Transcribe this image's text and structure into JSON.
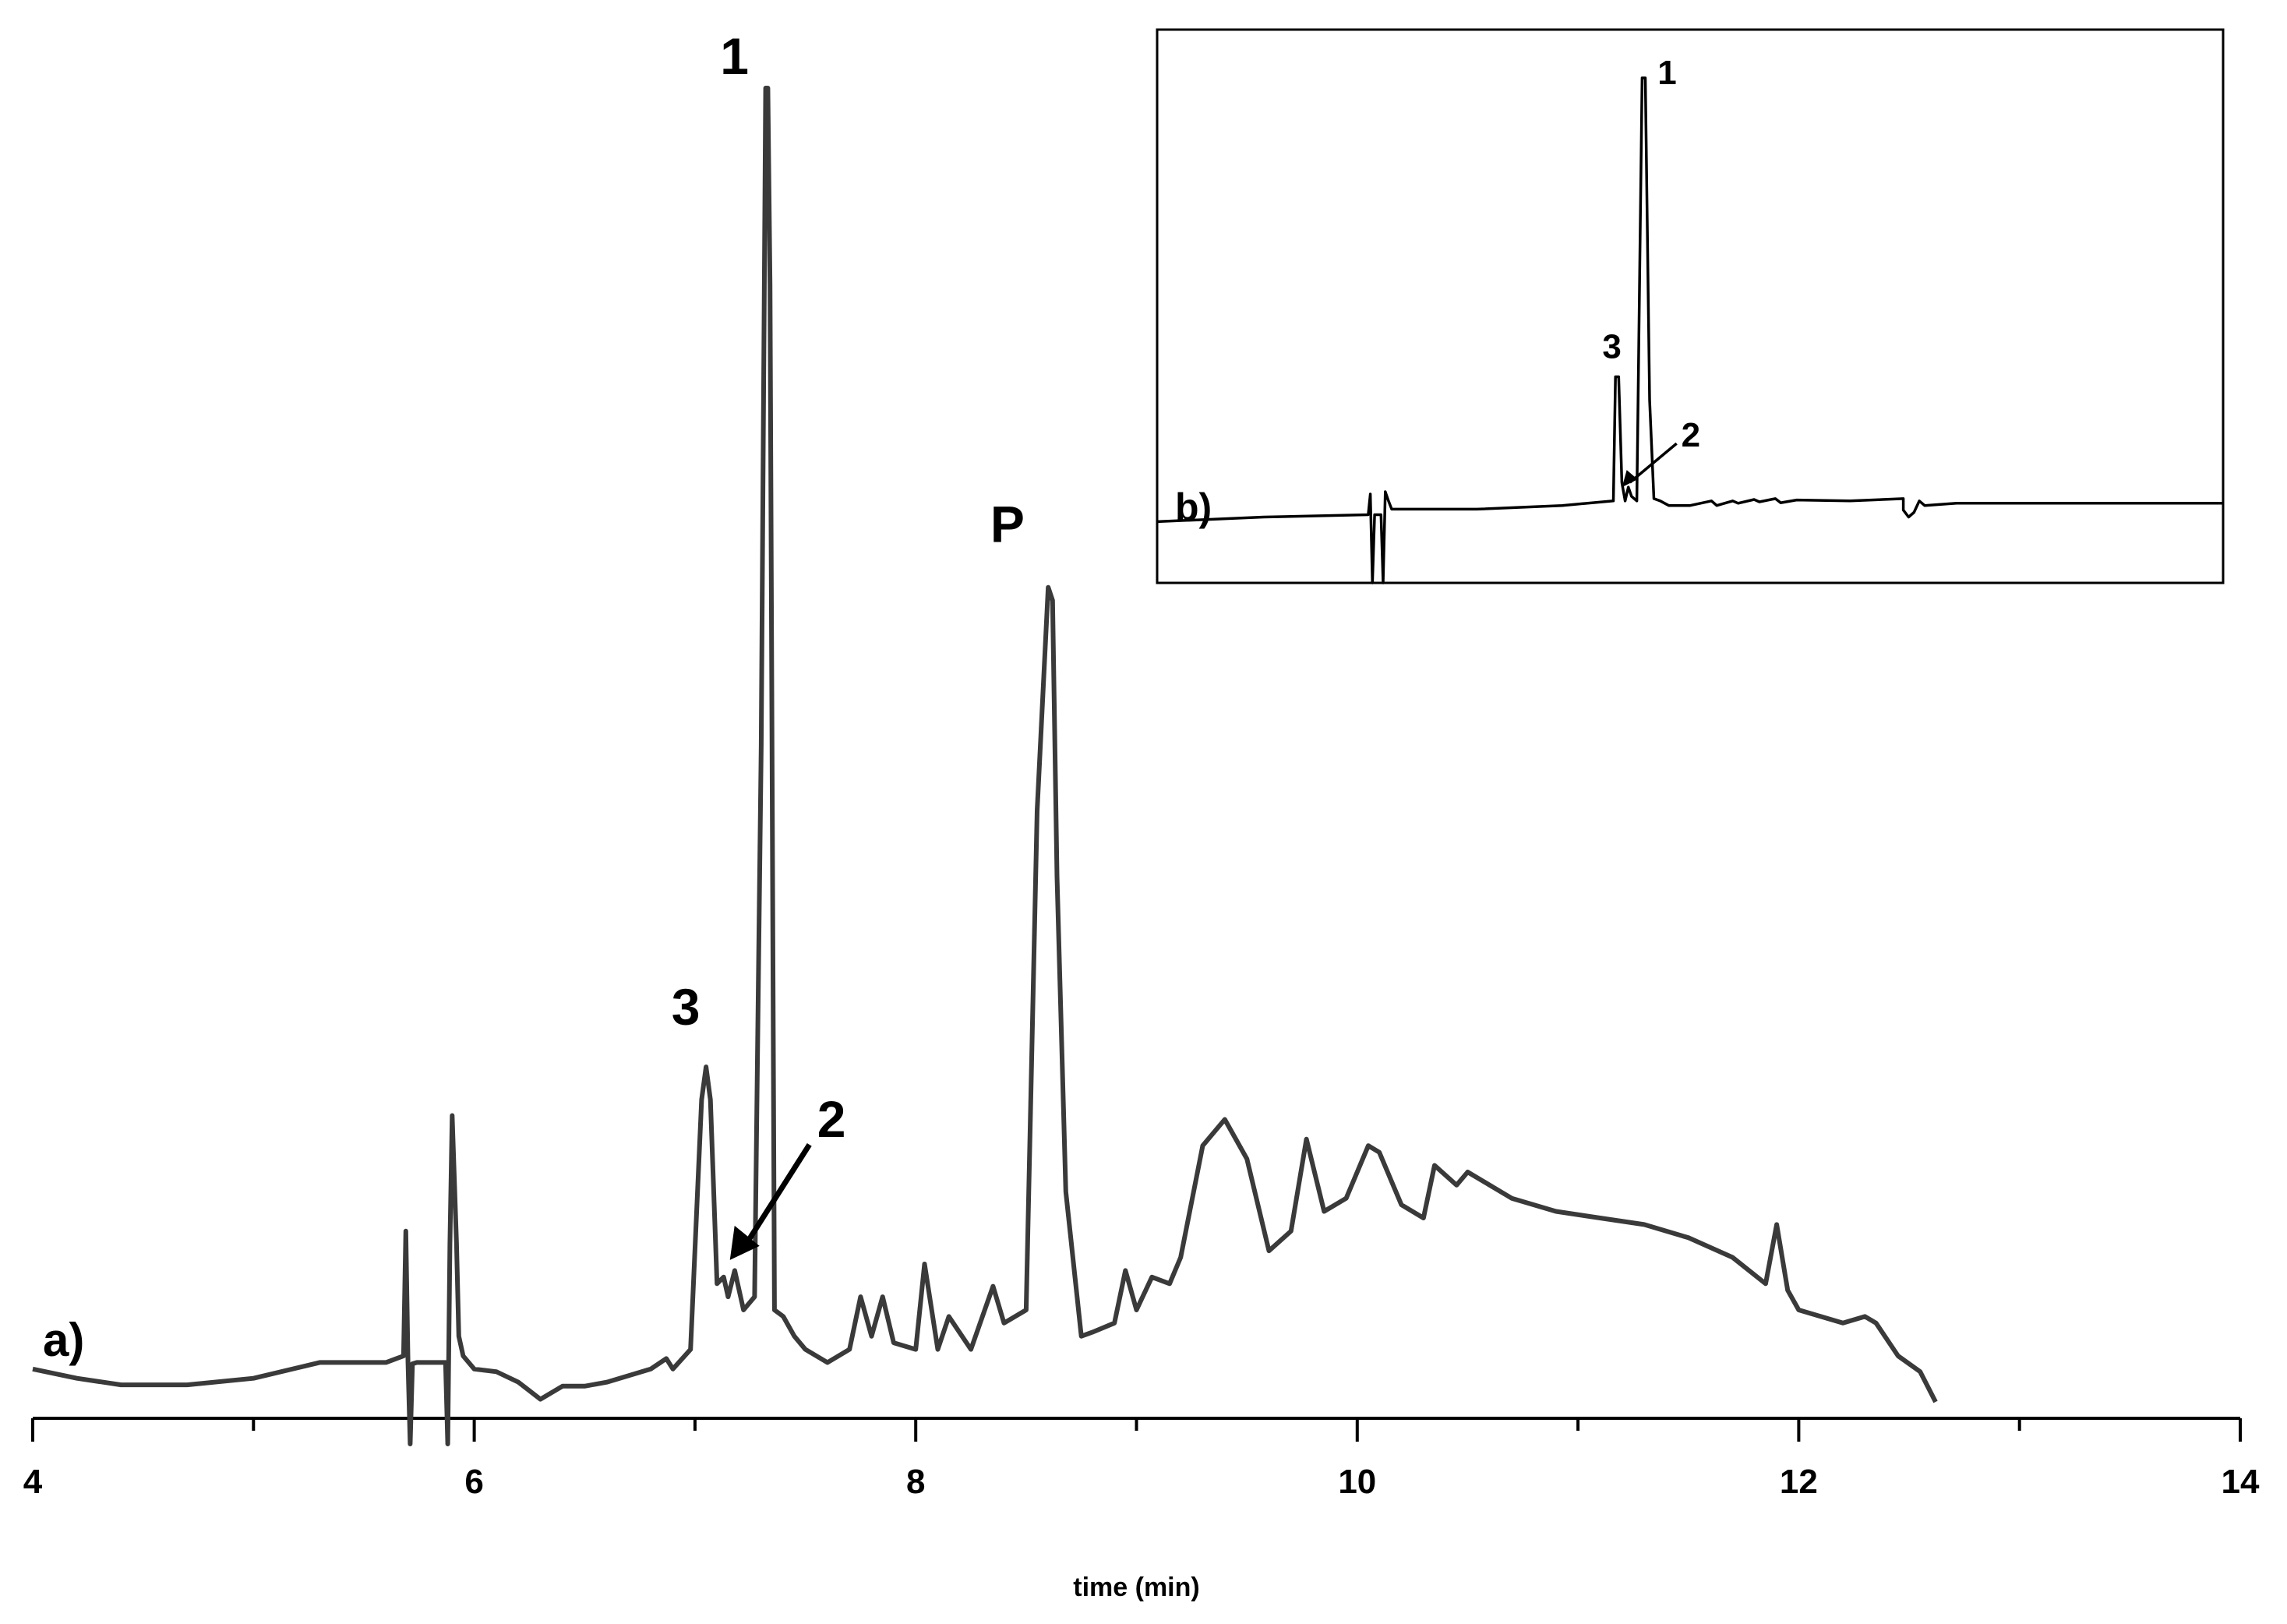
{
  "chart_data": [
    {
      "type": "line",
      "panel": "a)",
      "xlabel": "time (min)",
      "xlim": [
        4,
        14
      ],
      "xticks": [
        4,
        6,
        8,
        10,
        12,
        14
      ],
      "ylabel": "",
      "yaxis_shown": false,
      "grid": false,
      "line_color": "#3a3a3a",
      "series": [
        {
          "x": [
            4.0,
            4.2,
            4.4,
            4.7,
            5.0,
            5.3,
            5.6,
            5.68,
            5.69,
            5.7,
            5.71,
            5.72,
            5.74,
            5.8,
            5.87,
            5.88,
            5.89,
            5.9,
            5.92,
            5.93,
            5.95,
            6.0,
            6.1,
            6.2,
            6.3,
            6.4,
            6.5,
            6.6,
            6.7,
            6.8,
            6.87,
            6.9,
            6.98,
            7.03,
            7.05,
            7.07,
            7.1,
            7.13,
            7.15,
            7.18,
            7.22,
            7.27,
            7.3,
            7.32,
            7.33,
            7.34,
            7.36,
            7.4,
            7.45,
            7.5,
            7.6,
            7.7,
            7.75,
            7.8,
            7.85,
            7.9,
            8.0,
            8.04,
            8.1,
            8.15,
            8.25,
            8.35,
            8.4,
            8.5,
            8.55,
            8.6,
            8.62,
            8.64,
            8.68,
            8.75,
            8.8,
            8.9,
            8.95,
            9.0,
            9.07,
            9.15,
            9.2,
            9.3,
            9.4,
            9.5,
            9.6,
            9.7,
            9.77,
            9.85,
            9.95,
            10.05,
            10.1,
            10.2,
            10.3,
            10.35,
            10.45,
            10.5,
            10.7,
            10.9,
            11.1,
            11.3,
            11.5,
            11.7,
            11.85,
            11.9,
            11.95,
            12.0,
            12.1,
            12.2,
            12.3,
            12.35,
            12.45,
            12.55,
            12.62
          ],
          "y": [
            2.5,
            1.8,
            1.3,
            1.3,
            1.8,
            3.0,
            3.0,
            3.5,
            13.0,
            3.0,
            -3.2,
            2.9,
            3.0,
            3.0,
            3.0,
            -3.2,
            12.0,
            21.8,
            12.0,
            5.0,
            3.5,
            2.5,
            2.3,
            1.5,
            0.2,
            1.2,
            1.2,
            1.5,
            2.0,
            2.5,
            3.3,
            2.5,
            4.0,
            23.0,
            25.5,
            23.0,
            9.0,
            9.5,
            8.0,
            10.0,
            7.0,
            8.0,
            50.0,
            100.0,
            100.0,
            85.0,
            7.0,
            6.5,
            5.0,
            4.0,
            3.0,
            4.0,
            8.0,
            5.0,
            8.0,
            4.5,
            4.0,
            10.5,
            4.0,
            6.5,
            4.0,
            8.8,
            6.0,
            7.0,
            45.0,
            62.0,
            61.0,
            40.0,
            16.0,
            5.0,
            5.3,
            6.0,
            10.0,
            7.0,
            9.5,
            9.0,
            11.0,
            19.5,
            21.5,
            18.5,
            11.5,
            13.0,
            20.0,
            14.5,
            15.5,
            19.5,
            19.0,
            15.0,
            14.0,
            18.0,
            16.5,
            17.5,
            15.5,
            14.5,
            14.0,
            13.5,
            12.5,
            11.0,
            9.0,
            13.5,
            8.5,
            7.0,
            6.5,
            6.0,
            6.5,
            6.0,
            3.5,
            2.3,
            0.0
          ]
        }
      ],
      "annotations": [
        {
          "text": "1",
          "x": 7.32
        },
        {
          "text": "2",
          "x": 7.13
        },
        {
          "text": "3",
          "x": 7.05
        },
        {
          "text": "P",
          "x": 8.62
        }
      ]
    },
    {
      "type": "line",
      "panel": "b)",
      "inset": true,
      "xaxis_shown": false,
      "yaxis_shown": false,
      "xlim": [
        4,
        14
      ],
      "grid": false,
      "line_color": "#000000",
      "series": [
        {
          "x": [
            4.0,
            5.0,
            5.98,
            6.0,
            6.02,
            6.04,
            6.1,
            6.12,
            6.14,
            6.17,
            6.2,
            6.5,
            7.0,
            7.8,
            8.28,
            8.3,
            8.33,
            8.36,
            8.39,
            8.42,
            8.45,
            8.5,
            8.55,
            8.58,
            8.62,
            8.66,
            8.72,
            8.8,
            9.0,
            9.2,
            9.25,
            9.4,
            9.45,
            9.6,
            9.65,
            9.8,
            9.85,
            10.0,
            10.5,
            11.0,
            11.0,
            11.05,
            11.1,
            11.15,
            11.2,
            11.5,
            12.0,
            13.0,
            14.0
          ],
          "y": [
            3.5,
            4.5,
            5.0,
            9.5,
            -12.0,
            5.0,
            5.0,
            -13.0,
            10.0,
            8.0,
            6.2,
            6.2,
            6.2,
            7.0,
            8.0,
            35.0,
            35.0,
            12.0,
            8.0,
            11.0,
            9.0,
            8.0,
            100.0,
            100.0,
            30.0,
            8.5,
            8.0,
            7.0,
            7.0,
            8.0,
            7.0,
            8.0,
            7.5,
            8.3,
            7.8,
            8.5,
            7.6,
            8.2,
            8.0,
            8.5,
            6.0,
            4.5,
            5.5,
            8.0,
            7.0,
            7.5,
            7.5,
            7.5,
            7.5
          ]
        }
      ],
      "annotations": [
        {
          "text": "1",
          "x": 8.58
        },
        {
          "text": "2",
          "x": 8.42
        },
        {
          "text": "3",
          "x": 8.31
        }
      ]
    }
  ]
}
